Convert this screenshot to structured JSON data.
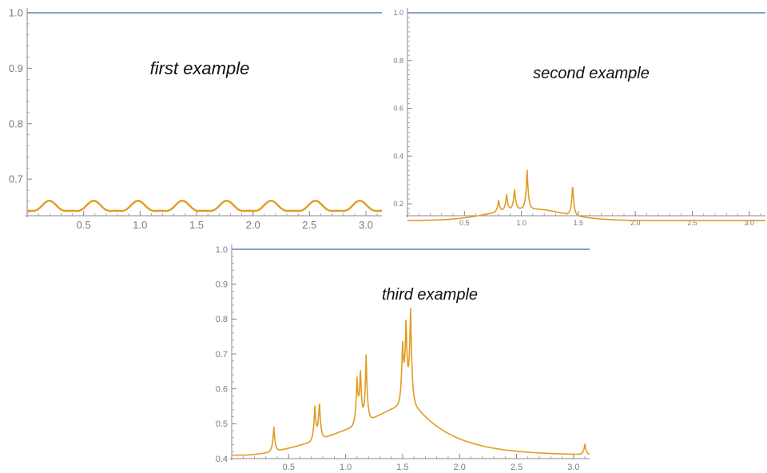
{
  "colors": {
    "flat_line": "#5e81b5",
    "curve": "#e19c24",
    "axis": "#888888",
    "tick_text": "#7a7a7a"
  },
  "chart_data": [
    {
      "type": "line",
      "annotation": "first example",
      "xlim": [
        0,
        3.14159
      ],
      "ylim": [
        0.634,
        1.0
      ],
      "x_ticks": [
        0.5,
        1.0,
        1.5,
        2.0,
        2.5,
        3.0
      ],
      "x_tick_labels": [
        "0.5",
        "1.0",
        "1.5",
        "2.0",
        "2.5",
        "3.0"
      ],
      "y_ticks": [
        0.7,
        0.8,
        0.9,
        1.0
      ],
      "y_tick_labels": [
        "0.7",
        "0.8",
        "0.9",
        "1.0"
      ],
      "series": [
        {
          "color": "#5e81b5",
          "points": [
            [
              0,
              1.0
            ],
            [
              3.14159,
              1.0
            ]
          ]
        },
        {
          "color": "#e19c24",
          "x": [
            0,
            3.14159
          ],
          "profile": "ripple",
          "period": 0.3927,
          "min": 0.637,
          "max": 0.661
        }
      ]
    },
    {
      "type": "line",
      "annotation": "second example",
      "xlim": [
        0,
        3.14159
      ],
      "ylim": [
        0.15,
        1.0
      ],
      "x_ticks": [
        0.5,
        1.0,
        1.5,
        2.0,
        2.5,
        3.0
      ],
      "x_tick_labels": [
        "0.5",
        "1.0",
        "1.5",
        "2.0",
        "2.5",
        "3.0"
      ],
      "y_ticks": [
        0.2,
        0.4,
        0.6,
        0.8,
        1.0
      ],
      "y_tick_labels": [
        "0.2",
        "0.4",
        "0.6",
        "0.8",
        "1.0"
      ],
      "series": [
        {
          "color": "#5e81b5",
          "points": [
            [
              0,
              1.0
            ],
            [
              3.14159,
              1.0
            ]
          ]
        },
        {
          "color": "#e19c24",
          "x": [
            0,
            3.14159
          ],
          "profile": "bump",
          "baseline": 0.13,
          "center": 1.05,
          "bump_height": 0.05,
          "spikes": [
            [
              0.8,
              0.18
            ],
            [
              0.87,
              0.2
            ],
            [
              0.94,
              0.22
            ],
            [
              1.05,
              0.3
            ],
            [
              1.45,
              0.26
            ]
          ]
        }
      ]
    },
    {
      "type": "line",
      "annotation": "third example",
      "xlim": [
        0,
        3.14159
      ],
      "ylim": [
        0.4,
        1.0
      ],
      "x_ticks": [
        0.5,
        1.0,
        1.5,
        2.0,
        2.5,
        3.0
      ],
      "x_tick_labels": [
        "0.5",
        "1.0",
        "1.5",
        "2.0",
        "2.5",
        "3.0"
      ],
      "y_ticks": [
        0.4,
        0.5,
        0.6,
        0.7,
        0.8,
        0.9,
        1.0
      ],
      "y_tick_labels": [
        "0.4",
        "0.5",
        "0.6",
        "0.7",
        "0.8",
        "0.9",
        "1.0"
      ],
      "series": [
        {
          "color": "#5e81b5",
          "points": [
            [
              0,
              1.0
            ],
            [
              3.14159,
              1.0
            ]
          ]
        },
        {
          "color": "#e19c24",
          "x": [
            0,
            3.14159
          ],
          "profile": "peak",
          "baseline": 0.41,
          "center": 1.57,
          "spikes": [
            [
              0.37,
              0.48
            ],
            [
              0.73,
              0.51
            ],
            [
              0.77,
              0.52
            ],
            [
              1.1,
              0.54
            ],
            [
              1.13,
              0.56
            ],
            [
              1.18,
              0.6
            ],
            [
              1.5,
              0.58
            ],
            [
              1.53,
              0.64
            ],
            [
              1.57,
              0.68
            ],
            [
              3.1,
              0.44
            ]
          ]
        }
      ]
    }
  ]
}
